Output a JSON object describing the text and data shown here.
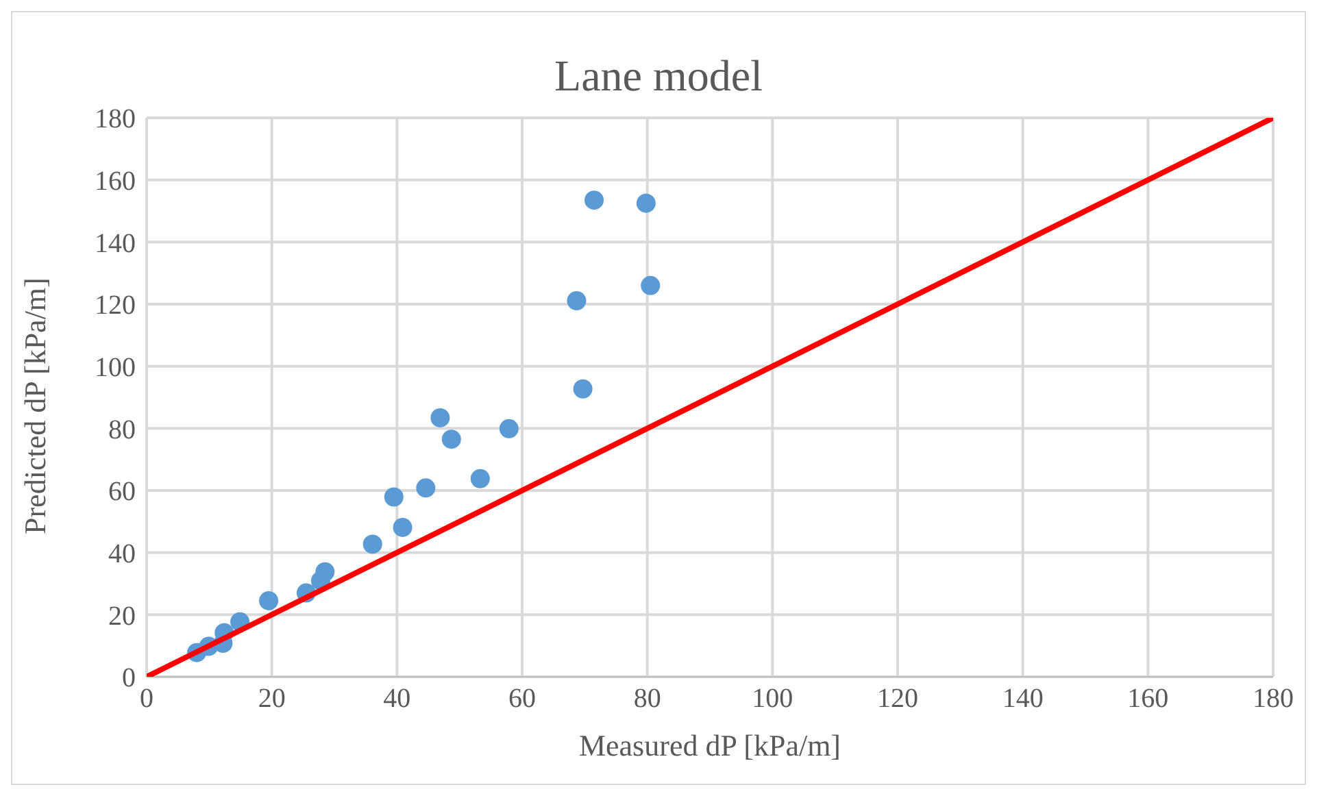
{
  "chart_data": {
    "type": "scatter",
    "title": "Lane model",
    "xlabel": "Measured dP [kPa/m]",
    "ylabel": "Predicted dP [kPa/m]",
    "xlim": [
      0,
      180
    ],
    "ylim": [
      0,
      180
    ],
    "xticks": [
      0,
      20,
      40,
      60,
      80,
      100,
      120,
      140,
      160,
      180
    ],
    "yticks": [
      0,
      20,
      40,
      60,
      80,
      100,
      120,
      140,
      160,
      180
    ],
    "grid": true,
    "legend": false,
    "marker": "circle",
    "series": [
      {
        "color": "#5b9bd5",
        "x": [
          8.0,
          9.9,
          12.2,
          12.4,
          14.9,
          19.5,
          25.5,
          27.8,
          28.5,
          36.1,
          39.5,
          40.9,
          44.6,
          46.9,
          48.7,
          53.3,
          57.9,
          68.7,
          69.7,
          71.5,
          79.8,
          80.5
        ],
        "values": [
          7.8,
          9.8,
          10.8,
          14.2,
          17.7,
          24.5,
          27.0,
          30.9,
          33.8,
          42.7,
          57.9,
          48.1,
          60.8,
          83.4,
          76.5,
          63.8,
          79.9,
          121.1,
          92.7,
          153.5,
          152.5,
          126.0
        ]
      },
      {
        "type": "line",
        "color": "#ff0000",
        "x": [
          0,
          180
        ],
        "values": [
          0,
          180
        ],
        "marker": "none",
        "line_style": "solid"
      }
    ]
  }
}
